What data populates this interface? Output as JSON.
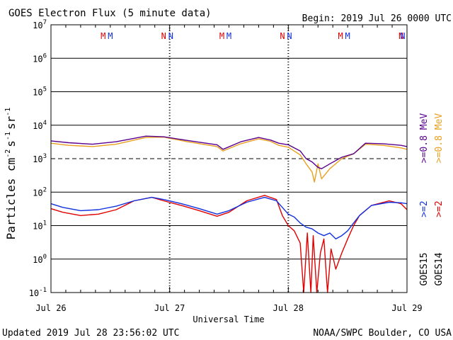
{
  "chart_data": {
    "type": "line",
    "title": "GOES Electron Flux (5 minute data)",
    "begin_label": "Begin: 2019 Jul 26 0000 UTC",
    "xlabel": "Universal Time",
    "ylabel": "Particles cm^-2 s^-1 sr^-1",
    "ylabel_parts": [
      "Particles cm",
      "-2",
      "s",
      "-1",
      "sr",
      "-1"
    ],
    "x_range_days": [
      0,
      3
    ],
    "x_ticks": [
      {
        "day": 0,
        "label": "Jul 26"
      },
      {
        "day": 1,
        "label": "Jul 27"
      },
      {
        "day": 2,
        "label": "Jul 28"
      },
      {
        "day": 3,
        "label": "Jul 29"
      }
    ],
    "y_scale": "log",
    "ylim": [
      0.1,
      10000000
    ],
    "y_ticks": [
      {
        "base": "10",
        "exp": "7"
      },
      {
        "base": "10",
        "exp": "6"
      },
      {
        "base": "10",
        "exp": "5"
      },
      {
        "base": "10",
        "exp": "4"
      },
      {
        "base": "10",
        "exp": "3"
      },
      {
        "base": "10",
        "exp": "2"
      },
      {
        "base": "10",
        "exp": "1"
      },
      {
        "base": "10",
        "exp": "0"
      },
      {
        "base": "10",
        "exp": "-1"
      }
    ],
    "alert_threshold": 1000,
    "markers": [
      {
        "day": 0.44,
        "text": "M",
        "color": "#e00000"
      },
      {
        "day": 0.5,
        "text": "M",
        "color": "#1030e0"
      },
      {
        "day": 0.95,
        "text": "N",
        "color": "#e00000"
      },
      {
        "day": 1.01,
        "text": "N",
        "color": "#1030e0"
      },
      {
        "day": 1.44,
        "text": "M",
        "color": "#e00000"
      },
      {
        "day": 1.5,
        "text": "M",
        "color": "#1030e0"
      },
      {
        "day": 1.95,
        "text": "N",
        "color": "#e00000"
      },
      {
        "day": 2.01,
        "text": "N",
        "color": "#1030e0"
      },
      {
        "day": 2.44,
        "text": "M",
        "color": "#e00000"
      },
      {
        "day": 2.5,
        "text": "M",
        "color": "#1030e0"
      },
      {
        "day": 2.95,
        "text": "N",
        "color": "#e00000"
      },
      {
        "day": 3.01,
        "text": "N",
        "color": "#1030e0"
      }
    ],
    "series": [
      {
        "name": "GOES14 >=0.8 MeV",
        "color": "#e8a020",
        "x": [
          0,
          0.15,
          0.35,
          0.55,
          0.8,
          0.95,
          1.15,
          1.4,
          1.45,
          1.6,
          1.75,
          1.85,
          1.92,
          2.0,
          2.1,
          2.15,
          2.2,
          2.22,
          2.25,
          2.28,
          2.35,
          2.45,
          2.55,
          2.65,
          2.8,
          2.95,
          3.0
        ],
        "y": [
          2900,
          2500,
          2300,
          2700,
          4300,
          4400,
          3200,
          2300,
          1700,
          2800,
          3900,
          3300,
          2500,
          2200,
          1300,
          700,
          400,
          200,
          700,
          250,
          500,
          1000,
          1400,
          2700,
          2500,
          2100,
          1900
        ]
      },
      {
        "name": "GOES15 >=0.8 MeV",
        "color": "#5a0090",
        "x": [
          0,
          0.15,
          0.35,
          0.55,
          0.8,
          0.95,
          1.15,
          1.4,
          1.45,
          1.6,
          1.75,
          1.85,
          1.92,
          2.0,
          2.1,
          2.15,
          2.2,
          2.25,
          2.28,
          2.35,
          2.45,
          2.55,
          2.65,
          2.8,
          2.95,
          3.0
        ],
        "y": [
          3400,
          3000,
          2700,
          3200,
          4700,
          4500,
          3500,
          2600,
          1900,
          3200,
          4300,
          3600,
          2900,
          2600,
          1700,
          1000,
          800,
          550,
          500,
          700,
          1100,
          1400,
          2900,
          2800,
          2500,
          2300
        ]
      },
      {
        "name": "GOES14 >=2 MeV",
        "color": "#e00000",
        "x": [
          0,
          0.1,
          0.25,
          0.4,
          0.55,
          0.7,
          0.85,
          0.95,
          1.1,
          1.25,
          1.4,
          1.5,
          1.65,
          1.8,
          1.9,
          1.95,
          2.0,
          2.05,
          2.1,
          2.13,
          2.16,
          2.19,
          2.21,
          2.24,
          2.27,
          2.3,
          2.33,
          2.36,
          2.4,
          2.45,
          2.5,
          2.55,
          2.6,
          2.7,
          2.85,
          2.95,
          3.0
        ],
        "y": [
          32,
          25,
          20,
          22,
          30,
          55,
          70,
          55,
          40,
          28,
          19,
          25,
          55,
          80,
          60,
          20,
          10,
          7,
          3,
          0.1,
          6,
          0.1,
          5,
          0.1,
          1.5,
          4,
          0.1,
          2,
          0.5,
          1.5,
          4,
          10,
          20,
          40,
          55,
          45,
          30
        ]
      },
      {
        "name": "GOES15 >=2 MeV",
        "color": "#1030e0",
        "x": [
          0,
          0.1,
          0.25,
          0.4,
          0.55,
          0.7,
          0.85,
          0.95,
          1.1,
          1.25,
          1.4,
          1.5,
          1.65,
          1.8,
          1.9,
          1.95,
          2.0,
          2.05,
          2.1,
          2.15,
          2.2,
          2.25,
          2.3,
          2.35,
          2.4,
          2.45,
          2.5,
          2.55,
          2.6,
          2.7,
          2.85,
          2.95,
          3.0
        ],
        "y": [
          45,
          35,
          28,
          30,
          38,
          55,
          70,
          60,
          45,
          32,
          22,
          28,
          50,
          70,
          55,
          35,
          22,
          18,
          12,
          9,
          8,
          6,
          5,
          6,
          4,
          5,
          7,
          12,
          20,
          40,
          50,
          48,
          45
        ]
      }
    ],
    "right_labels": [
      {
        "text": ">=0.8  MeV",
        "color": "#e8a020"
      },
      {
        "text": ">=0.8  MeV",
        "color": "#5a0090"
      },
      {
        "text": ">=2",
        "color": "#e00000"
      },
      {
        "text": ">=2",
        "color": "#1030e0"
      },
      {
        "text": "GOES14",
        "color": "#000000"
      },
      {
        "text": "GOES15",
        "color": "#000000"
      }
    ],
    "footer_left": "Updated 2019 Jul 28 23:56:02 UTC",
    "footer_right": "NOAA/SWPC Boulder, CO USA"
  }
}
